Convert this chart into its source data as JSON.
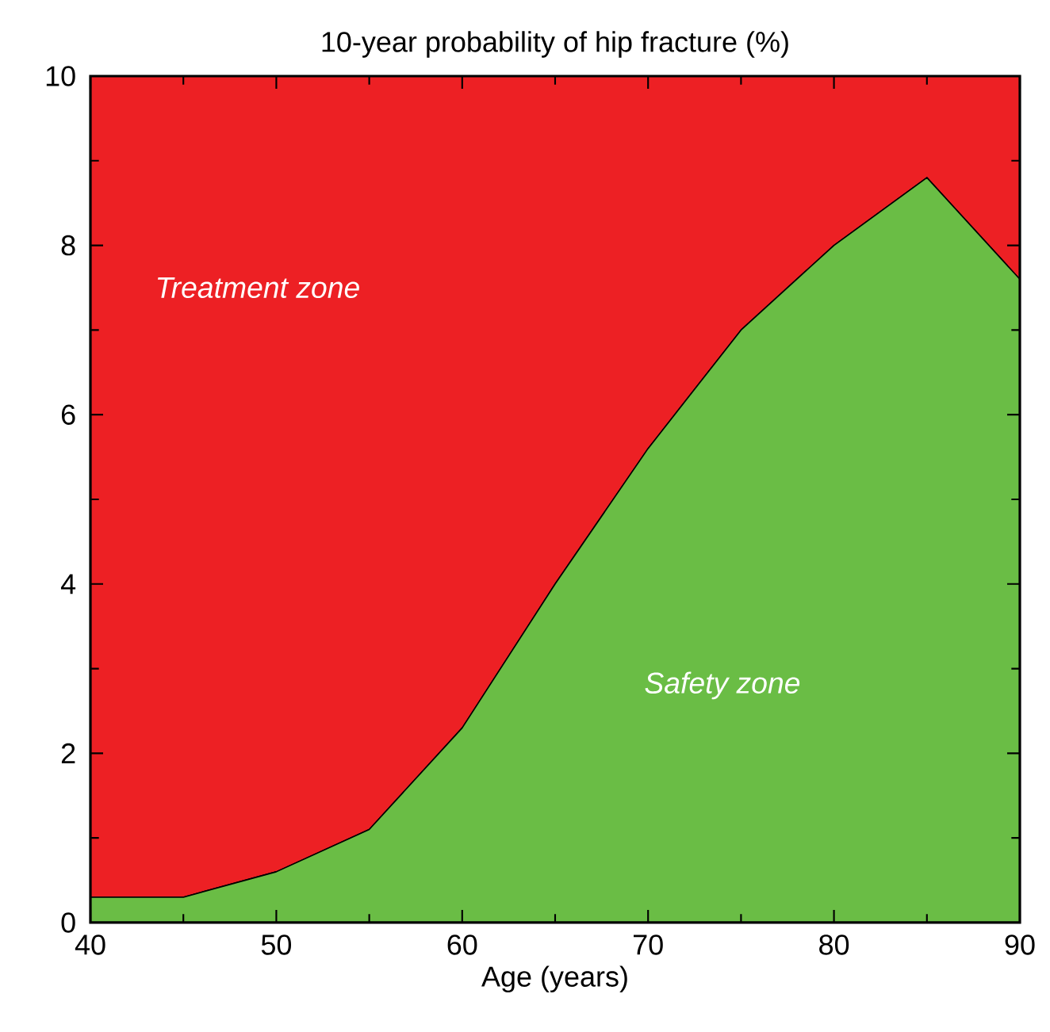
{
  "chart_data": {
    "type": "area",
    "stacked": true,
    "title": "10-year probability of hip fracture (%)",
    "xlabel": "Age (years)",
    "x": [
      40,
      45,
      50,
      55,
      60,
      65,
      70,
      75,
      80,
      85,
      90
    ],
    "series": [
      {
        "color": "#6abd45",
        "values": [
          0.3,
          0.3,
          0.6,
          1.1,
          2.3,
          4.0,
          5.6,
          7.0,
          8.0,
          8.8,
          7.6
        ]
      },
      {
        "color": "#ed2024",
        "values": [
          9.7,
          9.7,
          9.4,
          8.9,
          7.7,
          6.0,
          4.4,
          3.0,
          2.0,
          1.2,
          2.4
        ]
      }
    ],
    "annotations": [
      "Treatment zone",
      "Safety zone"
    ],
    "xlim": [
      40,
      90
    ],
    "ylim": [
      0,
      10
    ],
    "xticks": [
      40,
      50,
      60,
      70,
      80,
      90
    ],
    "yticks": [
      0,
      2,
      4,
      6,
      8,
      10
    ]
  }
}
